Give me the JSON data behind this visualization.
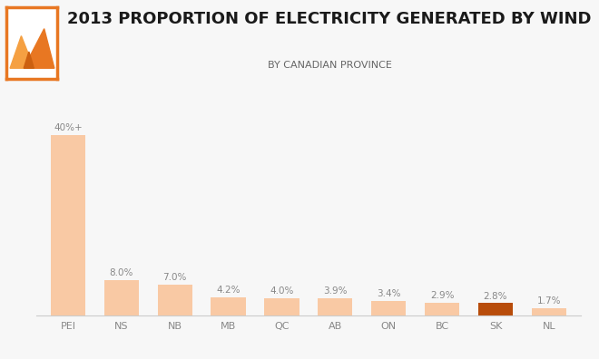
{
  "categories": [
    "PEI",
    "NS",
    "NB",
    "MB",
    "QC",
    "AB",
    "ON",
    "BC",
    "SK",
    "NL"
  ],
  "values": [
    40,
    8.0,
    7.0,
    4.2,
    4.0,
    3.9,
    3.4,
    2.9,
    2.8,
    1.7
  ],
  "labels": [
    "40%+",
    "8.0%",
    "7.0%",
    "4.2%",
    "4.0%",
    "3.9%",
    "3.4%",
    "2.9%",
    "2.8%",
    "1.7%"
  ],
  "bar_colors": [
    "#f9c9a4",
    "#f9c9a4",
    "#f9c9a4",
    "#f9c9a4",
    "#f9c9a4",
    "#f9c9a4",
    "#f9c9a4",
    "#f9c9a4",
    "#b84c0a",
    "#f9c9a4"
  ],
  "title": "2013 PROPORTION OF ELECTRICITY GENERATED BY WIND",
  "subtitle": "BY CANADIAN PROVINCE",
  "title_fontsize": 13,
  "subtitle_fontsize": 8,
  "label_fontsize": 7.5,
  "tick_fontsize": 8,
  "background_color": "#f7f7f7",
  "ylim": [
    0,
    46
  ],
  "label_color": "#888888",
  "tick_color": "#888888",
  "logo_border_color": "#e87722",
  "logo_bg": "#ffffff",
  "logo_tri1_color": "#e87722",
  "logo_tri2_color": "#f5a623"
}
